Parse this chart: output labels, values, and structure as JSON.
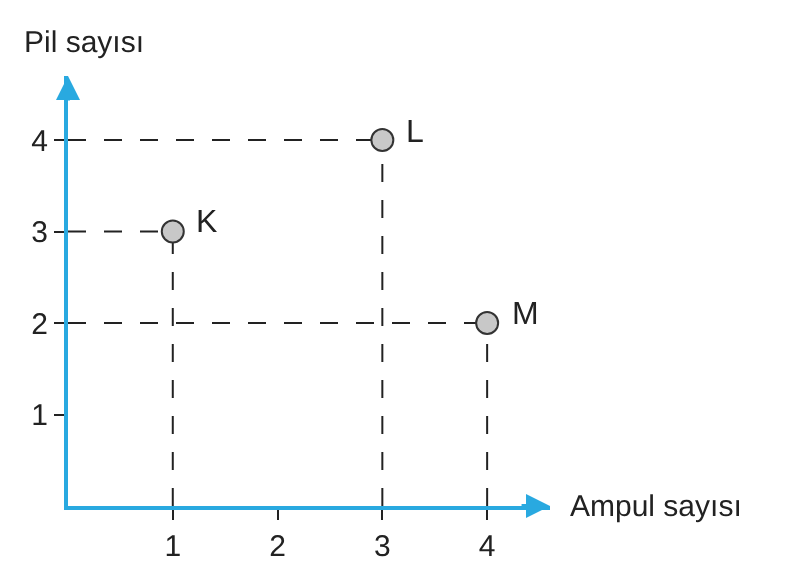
{
  "chart_data": {
    "type": "scatter",
    "xlabel": "Ampul sayısı",
    "ylabel": "Pil sayısı",
    "x": [
      1,
      3,
      4
    ],
    "values": [
      3,
      4,
      2
    ],
    "color": "#c8c8c8",
    "marker": "circle",
    "xlim": [
      0,
      4.6
    ],
    "ylim": [
      0,
      4.7
    ],
    "xticks": [
      1,
      2,
      3,
      4
    ],
    "yticks": [
      1,
      2,
      3,
      4
    ],
    "annotations": [
      {
        "text": "K",
        "x": 1,
        "y": 3
      },
      {
        "text": "L",
        "x": 3,
        "y": 4
      },
      {
        "text": "M",
        "x": 4,
        "y": 2
      }
    ]
  }
}
